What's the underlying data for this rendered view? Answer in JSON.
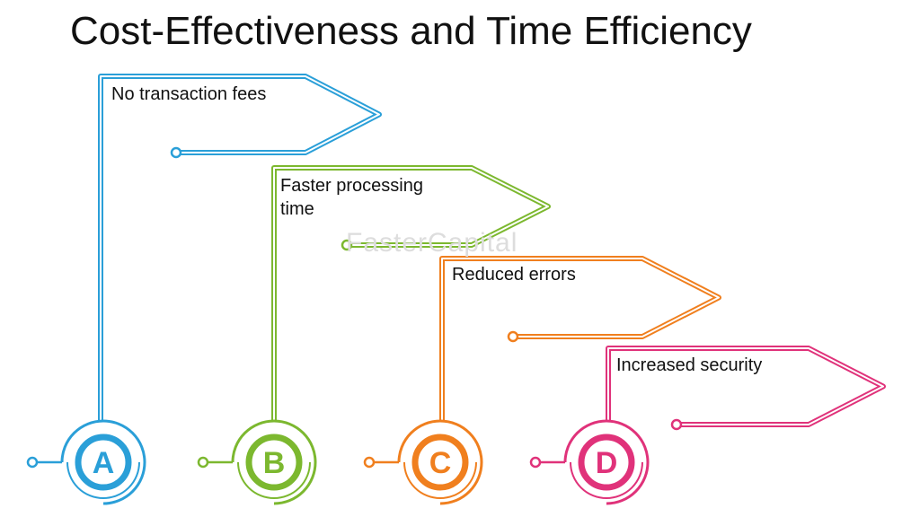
{
  "title": "Cost-Effectiveness and Time Efficiency",
  "watermark": "FasterCapital",
  "items": [
    {
      "letter": "A",
      "label": "No transaction fees",
      "color": "#2a9fd8"
    },
    {
      "letter": "B",
      "label": "Faster processing time",
      "color": "#7cb82f"
    },
    {
      "letter": "C",
      "label": "Reduced errors",
      "color": "#f07f1e"
    },
    {
      "letter": "D",
      "label": "Increased security",
      "color": "#e0327a"
    }
  ]
}
